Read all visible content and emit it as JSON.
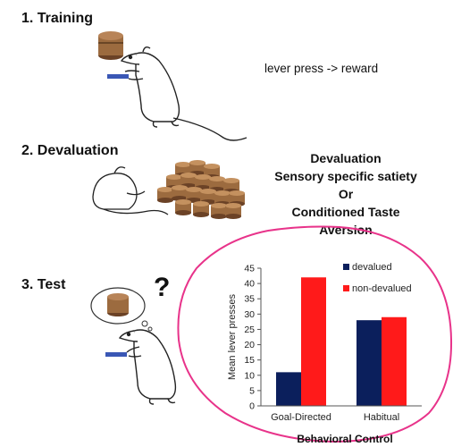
{
  "steps": [
    {
      "label": "1. Training",
      "note": "lever press -> reward"
    },
    {
      "label": "2. Devaluation",
      "note_lines": [
        "Devaluation",
        "Sensory specific satiety",
        "Or",
        "Conditioned Taste",
        "Aversion"
      ]
    },
    {
      "label": "3. Test",
      "thought": "?"
    }
  ],
  "colors": {
    "devalued": "#0b1f5c",
    "non_devalued": "#ff1a1a",
    "circle": "#e8338a",
    "pellet": "#9c6b3f",
    "pellet_dark": "#6b4226"
  },
  "chart_data": {
    "type": "bar",
    "categories": [
      "Goal-Directed",
      "Habitual"
    ],
    "series": [
      {
        "name": "devalued",
        "values": [
          11,
          28
        ]
      },
      {
        "name": "non-devalued",
        "values": [
          42,
          29
        ]
      }
    ],
    "title": "",
    "xlabel": "Behavioral Control",
    "ylabel": "Mean lever presses",
    "ylim": [
      0,
      45
    ],
    "yticks": [
      0,
      5,
      10,
      15,
      20,
      25,
      30,
      35,
      40,
      45
    ],
    "legend_position": "top-right"
  }
}
